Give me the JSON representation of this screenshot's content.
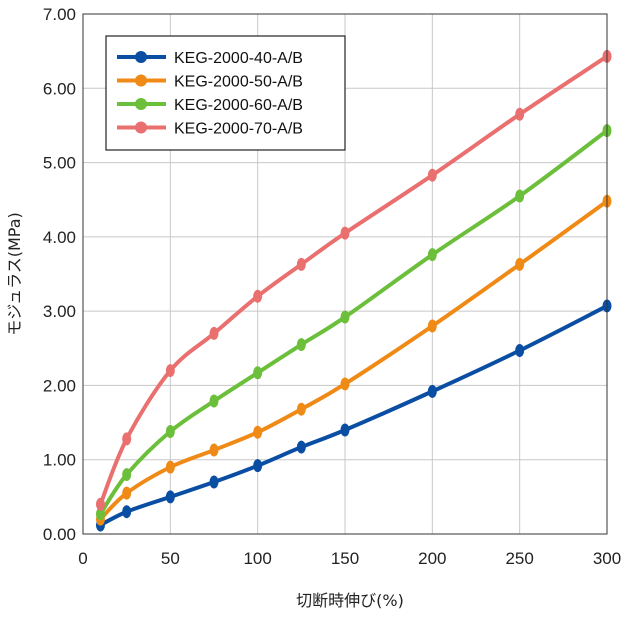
{
  "chart_data": {
    "type": "line",
    "xlabel": "切断時伸び(%)",
    "ylabel": "モジュラス(MPa)",
    "xlim": [
      0,
      300
    ],
    "ylim": [
      0,
      7
    ],
    "xticks": [
      0,
      50,
      100,
      150,
      200,
      250,
      300
    ],
    "yticks": [
      "0.00",
      "1.00",
      "2.00",
      "3.00",
      "4.00",
      "5.00",
      "6.00",
      "7.00"
    ],
    "grid": true,
    "legend_position": "top-left",
    "x": [
      10,
      25,
      50,
      75,
      100,
      125,
      150,
      200,
      250,
      300
    ],
    "series": [
      {
        "name": "KEG-2000-40-A/B",
        "color": "#0a4ea3",
        "values": [
          0.12,
          0.3,
          0.5,
          0.7,
          0.92,
          1.17,
          1.4,
          1.92,
          2.47,
          3.07
        ]
      },
      {
        "name": "KEG-2000-50-A/B",
        "color": "#f08a17",
        "values": [
          0.2,
          0.55,
          0.9,
          1.13,
          1.37,
          1.68,
          2.02,
          2.8,
          3.63,
          4.48
        ]
      },
      {
        "name": "KEG-2000-60-A/B",
        "color": "#6bbf3a",
        "values": [
          0.27,
          0.8,
          1.38,
          1.79,
          2.17,
          2.55,
          2.92,
          3.76,
          4.55,
          5.43
        ]
      },
      {
        "name": "KEG-2000-70-A/B",
        "color": "#ea6f6f",
        "values": [
          0.4,
          1.28,
          2.2,
          2.7,
          3.2,
          3.63,
          4.05,
          4.83,
          5.65,
          6.43
        ]
      }
    ]
  }
}
